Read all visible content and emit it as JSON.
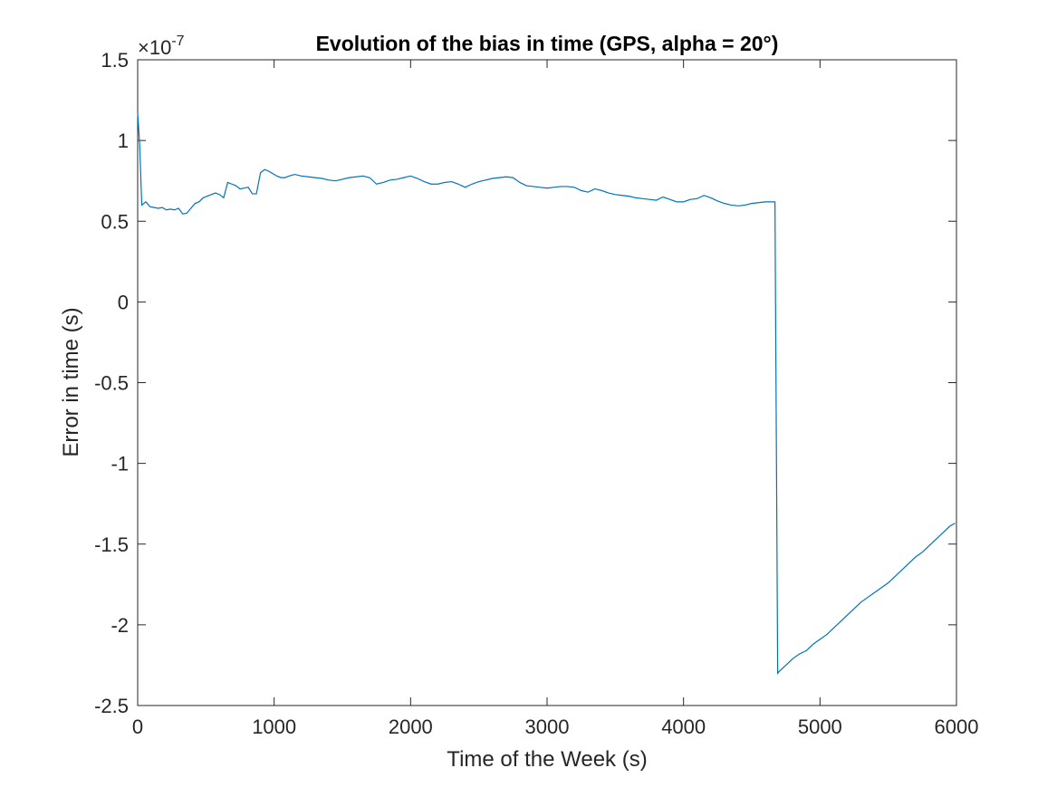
{
  "chart_data": {
    "type": "line",
    "title": "Evolution of the bias in time (GPS, alpha = 20°)",
    "xlabel": "Time of the Week (s)",
    "ylabel": "Error in time (s)",
    "exponent_base": "×10",
    "exponent_power": "-7",
    "xlim": [
      0,
      6000
    ],
    "ylim": [
      -2.5,
      1.5
    ],
    "y_scale_factor": 1e-07,
    "xticks": [
      "0",
      "1000",
      "2000",
      "3000",
      "4000",
      "5000",
      "6000"
    ],
    "xtick_values": [
      0,
      1000,
      2000,
      3000,
      4000,
      5000,
      6000
    ],
    "yticks": [
      "1.5",
      "1",
      "0.5",
      "0",
      "-0.5",
      "-1",
      "-1.5",
      "-2",
      "-2.5"
    ],
    "ytick_values": [
      1.5,
      1,
      0.5,
      0,
      -0.5,
      -1,
      -1.5,
      -2,
      -2.5
    ],
    "grid": false,
    "box": true,
    "line_color": "#0072BD",
    "series": [
      {
        "values_x": [
          0,
          15,
          30,
          60,
          90,
          120,
          150,
          180,
          210,
          240,
          270,
          300,
          330,
          360,
          390,
          420,
          450,
          480,
          510,
          540,
          570,
          600,
          630,
          660,
          690,
          720,
          750,
          780,
          810,
          840,
          870,
          900,
          930,
          960,
          990,
          1020,
          1050,
          1080,
          1110,
          1150,
          1200,
          1250,
          1300,
          1350,
          1400,
          1450,
          1500,
          1550,
          1600,
          1650,
          1700,
          1750,
          1800,
          1850,
          1900,
          1950,
          2000,
          2050,
          2100,
          2150,
          2200,
          2250,
          2300,
          2350,
          2400,
          2450,
          2500,
          2550,
          2600,
          2650,
          2700,
          2750,
          2800,
          2850,
          2900,
          2950,
          3000,
          3050,
          3100,
          3150,
          3200,
          3250,
          3300,
          3350,
          3400,
          3450,
          3500,
          3550,
          3600,
          3650,
          3700,
          3750,
          3800,
          3850,
          3900,
          3950,
          4000,
          4050,
          4100,
          4150,
          4200,
          4250,
          4300,
          4350,
          4400,
          4450,
          4500,
          4550,
          4600,
          4650,
          4670,
          4690,
          4700,
          4750,
          4800,
          4850,
          4900,
          4950,
          5000,
          5050,
          5100,
          5150,
          5200,
          5250,
          5300,
          5350,
          5400,
          5450,
          5500,
          5550,
          5600,
          5650,
          5700,
          5750,
          5800,
          5850,
          5900,
          5950,
          5990
        ],
        "values_y": [
          1.17,
          0.97,
          0.6,
          0.62,
          0.59,
          0.585,
          0.58,
          0.585,
          0.57,
          0.575,
          0.57,
          0.58,
          0.545,
          0.55,
          0.58,
          0.61,
          0.62,
          0.645,
          0.655,
          0.665,
          0.675,
          0.665,
          0.645,
          0.74,
          0.73,
          0.72,
          0.7,
          0.705,
          0.71,
          0.67,
          0.67,
          0.8,
          0.82,
          0.81,
          0.795,
          0.78,
          0.77,
          0.77,
          0.78,
          0.79,
          0.78,
          0.775,
          0.77,
          0.765,
          0.755,
          0.75,
          0.76,
          0.77,
          0.775,
          0.78,
          0.77,
          0.73,
          0.74,
          0.755,
          0.76,
          0.77,
          0.78,
          0.765,
          0.745,
          0.73,
          0.73,
          0.74,
          0.745,
          0.73,
          0.71,
          0.73,
          0.745,
          0.755,
          0.765,
          0.77,
          0.775,
          0.77,
          0.74,
          0.72,
          0.715,
          0.71,
          0.705,
          0.71,
          0.715,
          0.715,
          0.71,
          0.69,
          0.68,
          0.7,
          0.69,
          0.675,
          0.665,
          0.66,
          0.655,
          0.645,
          0.64,
          0.635,
          0.63,
          0.65,
          0.635,
          0.62,
          0.62,
          0.635,
          0.64,
          0.66,
          0.645,
          0.625,
          0.61,
          0.6,
          0.595,
          0.6,
          0.61,
          0.615,
          0.62,
          0.62,
          0.62,
          -2.3,
          -2.29,
          -2.25,
          -2.21,
          -2.18,
          -2.16,
          -2.12,
          -2.09,
          -2.06,
          -2.02,
          -1.98,
          -1.94,
          -1.9,
          -1.86,
          -1.83,
          -1.8,
          -1.77,
          -1.74,
          -1.7,
          -1.66,
          -1.62,
          -1.58,
          -1.55,
          -1.51,
          -1.47,
          -1.43,
          -1.39,
          -1.37
        ]
      }
    ]
  }
}
